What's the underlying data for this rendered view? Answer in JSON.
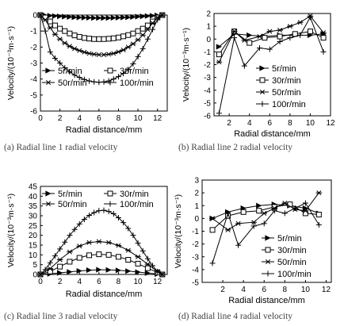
{
  "chart_data": [
    {
      "type": "line",
      "caption": "(a) Radial line 1 radial velocity",
      "xlabel": "Radial distance/mm",
      "ylabel": "Velocity/(10⁻³m·s⁻¹)",
      "xlim": [
        0,
        13
      ],
      "ylim": [
        -6,
        0
      ],
      "xticks": [
        0,
        2,
        4,
        6,
        8,
        10,
        12
      ],
      "yticks": [
        0,
        -1,
        -2,
        -3,
        -4,
        -5,
        -6
      ],
      "legend": "inside-bottom, 2 columns",
      "series": [
        {
          "name": "5r/min",
          "marker": "triangle-right",
          "x": [
            0,
            0.5,
            1,
            1.5,
            2,
            2.5,
            3,
            3.5,
            4,
            4.5,
            5,
            5.5,
            6,
            6.5,
            7,
            7.5,
            8,
            8.5,
            9,
            9.5,
            10,
            10.5,
            11,
            11.5,
            12,
            12.5
          ],
          "y": [
            0,
            -0.02,
            -0.04,
            -0.06,
            -0.08,
            -0.1,
            -0.12,
            -0.14,
            -0.15,
            -0.16,
            -0.17,
            -0.18,
            -0.18,
            -0.18,
            -0.18,
            -0.17,
            -0.16,
            -0.15,
            -0.14,
            -0.12,
            -0.1,
            -0.08,
            -0.06,
            -0.04,
            -0.02,
            0
          ]
        },
        {
          "name": "30r/min",
          "marker": "square",
          "x": [
            0,
            0.5,
            1,
            1.5,
            2,
            2.5,
            3,
            3.5,
            4,
            4.5,
            5,
            5.5,
            6,
            6.5,
            7,
            7.5,
            8,
            8.5,
            9,
            9.5,
            10,
            10.5,
            11,
            11.5,
            12,
            12.5
          ],
          "y": [
            0,
            -0.15,
            -0.4,
            -0.65,
            -0.85,
            -1.0,
            -1.15,
            -1.27,
            -1.36,
            -1.43,
            -1.47,
            -1.5,
            -1.5,
            -1.5,
            -1.48,
            -1.45,
            -1.4,
            -1.33,
            -1.25,
            -1.15,
            -1.0,
            -0.85,
            -0.65,
            -0.4,
            -0.15,
            0
          ]
        },
        {
          "name": "50r/min",
          "marker": "asterisk",
          "x": [
            0,
            0.5,
            1,
            1.5,
            2,
            2.5,
            3,
            3.5,
            4,
            4.5,
            5,
            5.5,
            6,
            6.5,
            7,
            7.5,
            8,
            8.5,
            9,
            9.5,
            10,
            10.5,
            11,
            11.5,
            12,
            12.5
          ],
          "y": [
            0,
            -0.3,
            -0.8,
            -1.2,
            -1.5,
            -1.75,
            -1.95,
            -2.1,
            -2.22,
            -2.32,
            -2.4,
            -2.45,
            -2.48,
            -2.48,
            -2.45,
            -2.4,
            -2.3,
            -2.18,
            -2.0,
            -1.8,
            -1.55,
            -1.25,
            -0.9,
            -0.5,
            -0.15,
            0
          ]
        },
        {
          "name": "100r/min",
          "marker": "plus",
          "x": [
            0,
            0.5,
            1,
            1.5,
            2,
            2.5,
            3,
            3.5,
            4,
            4.5,
            5,
            5.5,
            6,
            6.5,
            7,
            7.5,
            8,
            8.5,
            9,
            9.5,
            10,
            10.5,
            11,
            11.5,
            12,
            12.5
          ],
          "y": [
            0,
            -1.0,
            -2.3,
            -2.7,
            -3.0,
            -3.3,
            -3.55,
            -3.75,
            -3.9,
            -4.02,
            -4.12,
            -4.18,
            -4.2,
            -4.18,
            -4.12,
            -4.0,
            -3.85,
            -3.65,
            -3.4,
            -3.05,
            -2.6,
            -2.1,
            -1.5,
            -0.9,
            -0.3,
            0
          ]
        }
      ]
    },
    {
      "type": "line",
      "caption": "(b) Radial line 2 radial velocity",
      "xlabel": "Radial distance/mm",
      "ylabel": "Velocity/(10⁻³m·s⁻¹)",
      "xlim": [
        0.5,
        12
      ],
      "ylim": [
        -6,
        2
      ],
      "xticks": [
        2,
        4,
        6,
        8,
        10,
        12
      ],
      "yticks": [
        2,
        1,
        0,
        -1,
        -2,
        -3,
        -4,
        -5,
        -6
      ],
      "legend": "inside-bottom-right, 1 column",
      "series": [
        {
          "name": "5r/min",
          "marker": "triangle-right",
          "x": [
            1,
            2.5,
            4,
            5.5,
            7,
            8.5,
            10,
            11.3
          ],
          "y": [
            -0.6,
            0.4,
            0.3,
            0.2,
            0.3,
            0.3,
            0.3,
            0.4
          ]
        },
        {
          "name": "30r/min",
          "marker": "square",
          "x": [
            1,
            2.5,
            4,
            5.5,
            7,
            8.5,
            10,
            11.3
          ],
          "y": [
            -1.2,
            0.6,
            -0.3,
            0.1,
            0.2,
            0.4,
            0.6,
            0.1
          ]
        },
        {
          "name": "50r/min",
          "marker": "asterisk",
          "x": [
            1,
            2.5,
            3.5,
            5,
            6,
            7,
            8,
            9,
            10,
            11.3
          ],
          "y": [
            -1.8,
            0.6,
            -0.1,
            0.2,
            0.6,
            0.7,
            1.0,
            1.3,
            1.8,
            0.5
          ]
        },
        {
          "name": "100r/min",
          "marker": "plus",
          "x": [
            1,
            2.5,
            3.5,
            5,
            6,
            7,
            8,
            9,
            10,
            11.3
          ],
          "y": [
            -5.8,
            0.1,
            -2.1,
            -0.7,
            -0.8,
            -0.2,
            0.1,
            0.3,
            1.7,
            -1.0
          ]
        }
      ]
    },
    {
      "type": "line",
      "caption": "(c) Radial line 3 radial velocity",
      "xlabel": "Radial distance/mm",
      "ylabel": "Velocity/(10⁻³m·s⁻¹)",
      "xlim": [
        0,
        13
      ],
      "ylim": [
        0,
        45
      ],
      "xticks": [
        0,
        2,
        4,
        6,
        8,
        10,
        12
      ],
      "yticks": [
        45,
        40,
        35,
        30,
        25,
        20,
        15,
        10,
        5,
        0
      ],
      "legend": "inside-top, 2 columns",
      "series": [
        {
          "name": "5r/min",
          "marker": "triangle-right",
          "x": [
            0,
            1,
            2,
            3,
            4,
            5,
            6,
            7,
            8,
            9,
            10,
            11,
            12,
            12.5
          ],
          "y": [
            0,
            0.3,
            0.8,
            1.3,
            1.8,
            2.2,
            2.4,
            2.3,
            2.1,
            1.7,
            1.2,
            0.7,
            0.2,
            0
          ]
        },
        {
          "name": "30r/min",
          "marker": "square",
          "x": [
            0,
            1,
            2,
            3,
            4,
            5,
            6,
            7,
            8,
            9,
            10,
            11,
            12,
            12.5
          ],
          "y": [
            0,
            1.5,
            4.0,
            6.5,
            8.5,
            9.8,
            10.3,
            10.0,
            9.0,
            7.5,
            5.5,
            3.2,
            1.0,
            0
          ]
        },
        {
          "name": "50r/min",
          "marker": "asterisk",
          "x": [
            0,
            1,
            2,
            3,
            4,
            5,
            6,
            7,
            8,
            9,
            10,
            11,
            12,
            12.5
          ],
          "y": [
            0,
            3.0,
            7.5,
            11.5,
            14.5,
            16.3,
            16.8,
            16.3,
            14.8,
            12.3,
            9.0,
            5.2,
            1.5,
            0
          ]
        },
        {
          "name": "100r/min",
          "marker": "plus",
          "x": [
            0,
            0.5,
            1,
            1.5,
            2,
            2.5,
            3,
            3.5,
            4,
            4.5,
            5,
            5.5,
            6,
            6.5,
            7,
            7.5,
            8,
            8.5,
            9,
            9.5,
            10,
            10.5,
            11,
            11.5,
            12,
            12.5
          ],
          "y": [
            0,
            2.5,
            6.0,
            9.5,
            13.0,
            16.5,
            20.0,
            23.0,
            25.8,
            28.2,
            30.2,
            31.6,
            32.6,
            32.8,
            32.2,
            31.0,
            29.0,
            26.5,
            23.5,
            20.0,
            16.0,
            12.0,
            8.0,
            4.5,
            1.5,
            0
          ]
        }
      ]
    },
    {
      "type": "line",
      "caption": "(d) Radial line 4 radial velocity",
      "xlabel": "Radial distance/mm",
      "ylabel": "Velocity/(10⁻³m·s⁻¹)",
      "xlim": [
        0,
        12.5
      ],
      "ylim": [
        -5,
        3
      ],
      "xticks": [
        2,
        4,
        6,
        8,
        10,
        12
      ],
      "yticks": [
        3,
        2,
        1,
        0,
        -1,
        -2,
        -3,
        -4,
        -5
      ],
      "legend": "inside-bottom-right, 1 column",
      "series": [
        {
          "name": "5r/min",
          "marker": "triangle-right",
          "x": [
            1,
            2.5,
            4,
            5.5,
            7,
            8.5,
            10,
            11.3
          ],
          "y": [
            0.0,
            0.5,
            0.8,
            1.0,
            1.1,
            1.0,
            0.8,
            0.4
          ]
        },
        {
          "name": "30r/min",
          "marker": "square",
          "x": [
            1,
            2.5,
            4,
            5.5,
            7,
            8.5,
            10,
            11.3
          ],
          "y": [
            -0.9,
            0.2,
            0.5,
            0.6,
            0.9,
            1.1,
            0.4,
            0.3
          ]
        },
        {
          "name": "50r/min",
          "marker": "asterisk",
          "x": [
            1,
            2.5,
            3.5,
            5,
            6,
            7,
            8,
            9,
            10,
            11.3
          ],
          "y": [
            0.0,
            -0.9,
            -0.4,
            -0.3,
            0.4,
            0.8,
            1.2,
            0.7,
            0.6,
            2.0
          ]
        },
        {
          "name": "100r/min",
          "marker": "plus",
          "x": [
            1,
            2.5,
            3.5,
            5,
            6,
            7,
            8,
            9,
            10,
            11.3
          ],
          "y": [
            -3.5,
            0.4,
            -2.1,
            -0.6,
            -0.4,
            0.6,
            0.4,
            0.8,
            1.2,
            -0.5
          ]
        }
      ]
    }
  ]
}
